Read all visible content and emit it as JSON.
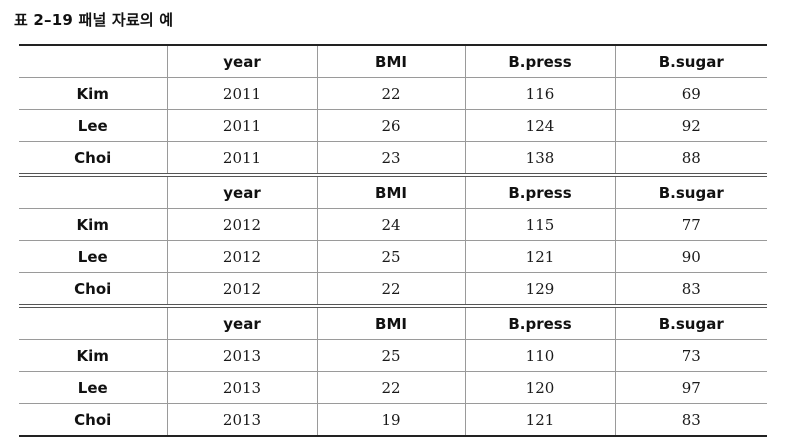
{
  "title": "표 2–19  패널 자료의 예",
  "columns": [
    "",
    "year",
    "BMI",
    "B.press",
    "B.sugar"
  ],
  "blocks": [
    {
      "rows": [
        {
          "name": "Kim",
          "year": "2011",
          "bmi": "22",
          "bpress": "116",
          "bsugar": "69"
        },
        {
          "name": "Lee",
          "year": "2011",
          "bmi": "26",
          "bpress": "124",
          "bsugar": "92"
        },
        {
          "name": "Choi",
          "year": "2011",
          "bmi": "23",
          "bpress": "138",
          "bsugar": "88"
        }
      ]
    },
    {
      "rows": [
        {
          "name": "Kim",
          "year": "2012",
          "bmi": "24",
          "bpress": "115",
          "bsugar": "77"
        },
        {
          "name": "Lee",
          "year": "2012",
          "bmi": "25",
          "bpress": "121",
          "bsugar": "90"
        },
        {
          "name": "Choi",
          "year": "2012",
          "bmi": "22",
          "bpress": "129",
          "bsugar": "83"
        }
      ]
    },
    {
      "rows": [
        {
          "name": "Kim",
          "year": "2013",
          "bmi": "25",
          "bpress": "110",
          "bsugar": "73"
        },
        {
          "name": "Lee",
          "year": "2013",
          "bmi": "22",
          "bpress": "120",
          "bsugar": "97"
        },
        {
          "name": "Choi",
          "year": "2013",
          "bmi": "19",
          "bpress": "121",
          "bsugar": "83"
        }
      ]
    }
  ]
}
